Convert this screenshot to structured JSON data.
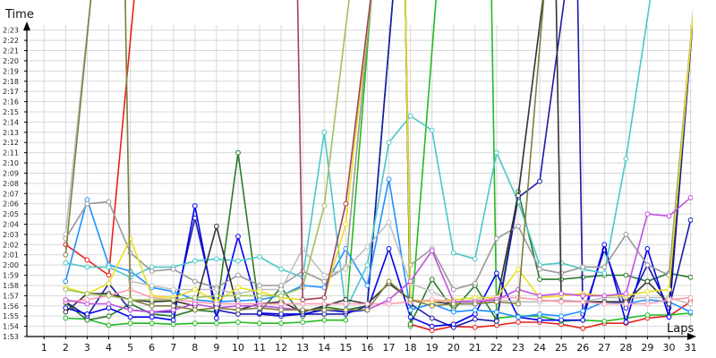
{
  "chart_data": {
    "type": "line",
    "ylabel": "Time",
    "xlabel": "Laps",
    "x": [
      1,
      2,
      3,
      4,
      5,
      6,
      7,
      8,
      9,
      10,
      11,
      12,
      13,
      14,
      15,
      16,
      17,
      18,
      19,
      20,
      21,
      22,
      23,
      24,
      25,
      26,
      27,
      28,
      29,
      30,
      31
    ],
    "x_ticks": [
      "1",
      "2",
      "3",
      "4",
      "5",
      "6",
      "7",
      "8",
      "9",
      "10",
      "11",
      "12",
      "13",
      "14",
      "15",
      "16",
      "17",
      "18",
      "19",
      "20",
      "21",
      "22",
      "23",
      "24",
      "25",
      "26",
      "27",
      "28",
      "29",
      "30",
      "31"
    ],
    "y_ticks": [
      "1:53",
      "1:54",
      "1:55",
      "1:56",
      "1:57",
      "1:58",
      "1:59",
      "2:00",
      "2:01",
      "2:02",
      "2:03",
      "2:04",
      "2:05",
      "2:06",
      "2:07",
      "2:08",
      "2:09",
      "2:10",
      "2:11",
      "2:12",
      "2:13",
      "2:14",
      "2:15",
      "2:16",
      "2:17",
      "2:18",
      "2:19",
      "2:20",
      "2:21",
      "2:22",
      "2:23"
    ],
    "y_unit": "seconds",
    "ylim": [
      113,
      143.5
    ],
    "xlim": [
      0.2,
      31.1
    ],
    "grid": true,
    "legend": "none",
    "series": [
      {
        "color": "#e8201a",
        "values": [
          null,
          122,
          120.5,
          119,
          null,
          null,
          null,
          null,
          null,
          null,
          null,
          null,
          null,
          null,
          null,
          null,
          null,
          114.2,
          113.6,
          114,
          113.9,
          114.1,
          114.4,
          114.4,
          114.2,
          113.8,
          114.3,
          114.3,
          114.8,
          115,
          116.4
        ]
      },
      {
        "color": "#22bb22",
        "values": [
          null,
          114.8,
          114.7,
          114.1,
          114.3,
          114.3,
          114.2,
          114.3,
          114.3,
          114.4,
          114.3,
          114.3,
          114.4,
          114.6,
          114.6,
          null,
          null,
          114,
          null,
          null,
          null,
          114.8,
          115,
          115,
          114.5,
          114.6,
          114.5,
          114.8,
          115.1,
          115.1,
          115.3
        ]
      },
      {
        "color": "#2a7a2a",
        "values": [
          null,
          116.3,
          114.6,
          115,
          116.2,
          115.2,
          115,
          115.6,
          115.4,
          131,
          115.4,
          117.8,
          115,
          115.9,
          115.6,
          116,
          null,
          114.2,
          118.6,
          115.6,
          118,
          114.6,
          127.2,
          118.6,
          118.6,
          118.8,
          119,
          119,
          118.4,
          119.2,
          118.8
        ]
      },
      {
        "color": "#1a1aaa",
        "values": [
          null,
          116.4,
          115,
          118.2,
          115.6,
          115.4,
          115.4,
          124.6,
          115.6,
          115.2,
          115.2,
          115,
          115.2,
          115.2,
          115.2,
          116,
          null,
          116.2,
          114.8,
          113.9,
          114.7,
          114.5,
          126.6,
          128.2,
          null,
          115.2,
          121.5,
          115.8,
          120,
          115.8,
          124.4
        ]
      },
      {
        "color": "#0000ee",
        "values": [
          null,
          115.8,
          115.2,
          115.8,
          114.9,
          114.9,
          114.6,
          125.8,
          114.8,
          122.8,
          115.3,
          115.2,
          115.2,
          115.6,
          115.4,
          115.6,
          121.6,
          114.9,
          114,
          114.2,
          115.2,
          119.2,
          114.9,
          114.6,
          114.6,
          114.6,
          122,
          114.4,
          121.6,
          114.9,
          null
        ]
      },
      {
        "color": "#1e90ff",
        "values": [
          null,
          118.4,
          126.4,
          120,
          119.4,
          117.8,
          117.4,
          116.6,
          116.4,
          116.5,
          116.6,
          117,
          118,
          117.8,
          121.6,
          118,
          128.4,
          115.6,
          116.2,
          115.4,
          115.6,
          115.4,
          114.9,
          115.2,
          115,
          115.5,
          116.4,
          116.2,
          116.6,
          116.4,
          115.4
        ]
      },
      {
        "color": "#48c8c8",
        "values": [
          null,
          120.2,
          119.8,
          119.8,
          118.8,
          119.8,
          119.8,
          120.4,
          120.6,
          120.4,
          120.8,
          119.6,
          118.8,
          133,
          115.6,
          120,
          132,
          134.6,
          133.2,
          121.2,
          120.6,
          131,
          126.2,
          120,
          120.2,
          119.6,
          119.2,
          130.4,
          null,
          null,
          null
        ]
      },
      {
        "color": "#999999",
        "values": [
          null,
          122.6,
          126,
          126.2,
          121.2,
          119.4,
          119.6,
          118.4,
          117.8,
          119,
          118,
          118,
          119.4,
          118.4,
          119.8,
          null,
          null,
          120,
          121.6,
          117.6,
          118.2,
          122.6,
          123.8,
          119.6,
          119.2,
          119.8,
          119.8,
          123,
          120,
          119,
          null
        ]
      },
      {
        "color": "#c0c0c0",
        "values": [
          null,
          123,
          null,
          null,
          118.4,
          118,
          117.6,
          117.6,
          117.6,
          117.2,
          117.6,
          117.6,
          121.6,
          119,
          119.6,
          121.8,
          124.2,
          118.2,
          117.4,
          116.4,
          116.6,
          116.6,
          116.4,
          116.4,
          116.6,
          116.4,
          116.8,
          116.8,
          116.8,
          116.8,
          116.2
        ]
      },
      {
        "color": "#333333",
        "values": [
          null,
          115.4,
          117.2,
          117.2,
          116.6,
          116.4,
          116.5,
          116,
          123.8,
          115.6,
          116.2,
          116.4,
          115.4,
          116,
          116.6,
          116.2,
          118.2,
          116.6,
          116.4,
          116.2,
          116.2,
          116.4,
          126.8,
          null,
          116.4,
          116.4,
          116.4,
          116.4,
          118.4,
          116.2,
          null
        ]
      },
      {
        "color": "#e8e020",
        "values": [
          null,
          117.8,
          117.2,
          118.2,
          122.6,
          117,
          116.8,
          117.6,
          116.4,
          117.8,
          117.4,
          116.8,
          116.6,
          116.8,
          124,
          null,
          null,
          116.6,
          116.4,
          116.6,
          116.8,
          116.8,
          119.6,
          116.8,
          117,
          117.2,
          117,
          117,
          117.4,
          117.6,
          null
        ]
      },
      {
        "color": "#ff9ab0",
        "values": [
          null,
          116.4,
          116.6,
          117,
          117.6,
          116.8,
          116.6,
          116.4,
          116.2,
          116.2,
          116.2,
          116.2,
          116.2,
          116.2,
          116.2,
          116.2,
          116.2,
          116.4,
          116.6,
          116.4,
          116.4,
          116.8,
          116.8,
          116.6,
          116.4,
          116.4,
          116.2,
          116.2,
          116.2,
          116.6,
          116.8
        ]
      },
      {
        "color": "#c050e0",
        "values": [
          null,
          116.6,
          116.2,
          116.2,
          115.6,
          115.4,
          115.6,
          116.2,
          115.8,
          116,
          116,
          115.8,
          115.6,
          115.6,
          115.6,
          115.6,
          116.6,
          118.4,
          121.4,
          116.4,
          116.4,
          116.6,
          117.6,
          117,
          117.2,
          117,
          117,
          117.2,
          125,
          124.8,
          126.6
        ]
      },
      {
        "color": "#808040",
        "values": [
          null,
          121,
          null,
          null,
          116.6,
          116,
          116,
          115.6,
          115.8,
          115.6,
          115.8,
          115.6,
          115.6,
          115.6,
          115.6,
          115.6,
          118.4,
          116.6,
          116,
          116.2,
          116.2,
          116.4,
          116.2,
          null,
          null,
          null,
          null,
          null,
          null,
          null,
          null
        ]
      },
      {
        "color": "#a0c060",
        "values": [
          null,
          117.6,
          117.2,
          117,
          116.6,
          116.6,
          116.6,
          116.8,
          117,
          117,
          117,
          117,
          117.8,
          125.8,
          null,
          null,
          null,
          null,
          null,
          null,
          null,
          null,
          null,
          null,
          null,
          null,
          null,
          null,
          null,
          null,
          null
        ]
      },
      {
        "color": "#a04060",
        "values": [
          null,
          null,
          null,
          null,
          null,
          null,
          null,
          null,
          null,
          null,
          null,
          null,
          116.6,
          116.8,
          126,
          null,
          null,
          null,
          null,
          null,
          null,
          null,
          null,
          null,
          null,
          null,
          null,
          null,
          null,
          null,
          null
        ]
      }
    ]
  }
}
